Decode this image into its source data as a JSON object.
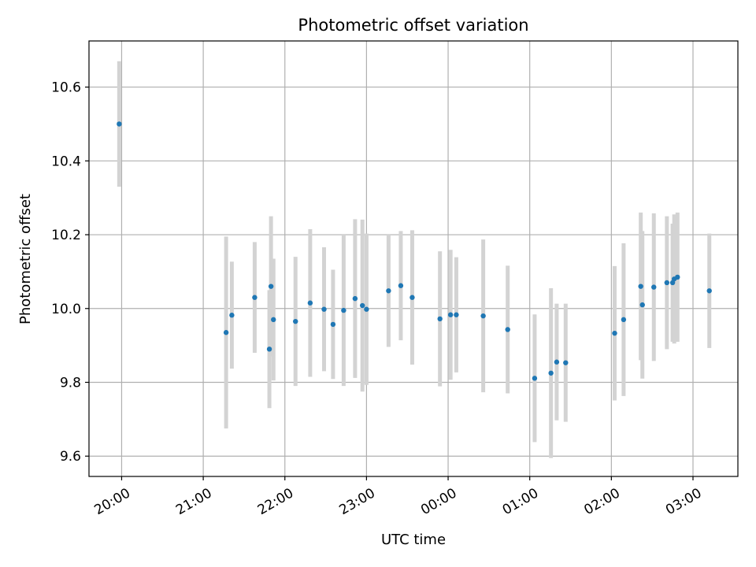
{
  "chart_data": {
    "type": "scatter",
    "title": "Photometric offset variation",
    "xlabel": "UTC time",
    "ylabel": "Photometric offset",
    "x_unit": "UTC time of night (hours, 24 = midnight)",
    "xlim": [
      19.6,
      27.55
    ],
    "ylim": [
      9.545,
      10.725
    ],
    "grid": true,
    "x_ticks": [
      {
        "value": 20,
        "label": "20:00"
      },
      {
        "value": 21,
        "label": "21:00"
      },
      {
        "value": 22,
        "label": "22:00"
      },
      {
        "value": 23,
        "label": "23:00"
      },
      {
        "value": 24,
        "label": "00:00"
      },
      {
        "value": 25,
        "label": "01:00"
      },
      {
        "value": 26,
        "label": "02:00"
      },
      {
        "value": 27,
        "label": "03:00"
      }
    ],
    "y_ticks": [
      {
        "value": 9.6,
        "label": "9.6"
      },
      {
        "value": 9.8,
        "label": "9.8"
      },
      {
        "value": 10.0,
        "label": "10.0"
      },
      {
        "value": 10.2,
        "label": "10.2"
      },
      {
        "value": 10.4,
        "label": "10.4"
      },
      {
        "value": 10.6,
        "label": "10.6"
      }
    ],
    "colors": {
      "points": "#1f77b4",
      "errorbars": "#d3d3d3",
      "grid": "#b0b0b0",
      "axes": "#000000"
    },
    "points": [
      {
        "x": 19.97,
        "y": 10.5,
        "err": 0.17
      },
      {
        "x": 21.28,
        "y": 9.935,
        "err": 0.26
      },
      {
        "x": 21.35,
        "y": 9.982,
        "err": 0.145
      },
      {
        "x": 21.63,
        "y": 10.03,
        "err": 0.15
      },
      {
        "x": 21.81,
        "y": 9.89,
        "err": 0.16
      },
      {
        "x": 21.83,
        "y": 10.06,
        "err": 0.19
      },
      {
        "x": 21.86,
        "y": 9.97,
        "err": 0.165
      },
      {
        "x": 22.13,
        "y": 9.965,
        "err": 0.175
      },
      {
        "x": 22.31,
        "y": 10.015,
        "err": 0.2
      },
      {
        "x": 22.48,
        "y": 9.998,
        "err": 0.168
      },
      {
        "x": 22.59,
        "y": 9.957,
        "err": 0.148
      },
      {
        "x": 22.72,
        "y": 9.995,
        "err": 0.205
      },
      {
        "x": 22.86,
        "y": 10.027,
        "err": 0.215
      },
      {
        "x": 22.95,
        "y": 10.008,
        "err": 0.233
      },
      {
        "x": 23.0,
        "y": 9.998,
        "err": 0.205
      },
      {
        "x": 23.27,
        "y": 10.048,
        "err": 0.152
      },
      {
        "x": 23.42,
        "y": 10.062,
        "err": 0.148
      },
      {
        "x": 23.56,
        "y": 10.03,
        "err": 0.182
      },
      {
        "x": 23.9,
        "y": 9.972,
        "err": 0.183
      },
      {
        "x": 24.03,
        "y": 9.983,
        "err": 0.176
      },
      {
        "x": 24.1,
        "y": 9.983,
        "err": 0.156
      },
      {
        "x": 24.43,
        "y": 9.98,
        "err": 0.207
      },
      {
        "x": 24.73,
        "y": 9.943,
        "err": 0.173
      },
      {
        "x": 25.06,
        "y": 9.811,
        "err": 0.173
      },
      {
        "x": 25.26,
        "y": 9.825,
        "err": 0.23
      },
      {
        "x": 25.33,
        "y": 9.855,
        "err": 0.158
      },
      {
        "x": 25.44,
        "y": 9.853,
        "err": 0.16
      },
      {
        "x": 26.04,
        "y": 9.933,
        "err": 0.182
      },
      {
        "x": 26.15,
        "y": 9.97,
        "err": 0.207
      },
      {
        "x": 26.36,
        "y": 10.06,
        "err": 0.2
      },
      {
        "x": 26.38,
        "y": 10.01,
        "err": 0.2
      },
      {
        "x": 26.52,
        "y": 10.058,
        "err": 0.2
      },
      {
        "x": 26.68,
        "y": 10.07,
        "err": 0.18
      },
      {
        "x": 26.75,
        "y": 10.07,
        "err": 0.16
      },
      {
        "x": 26.77,
        "y": 10.08,
        "err": 0.175
      },
      {
        "x": 26.81,
        "y": 10.085,
        "err": 0.175
      },
      {
        "x": 27.2,
        "y": 10.048,
        "err": 0.155
      }
    ]
  }
}
